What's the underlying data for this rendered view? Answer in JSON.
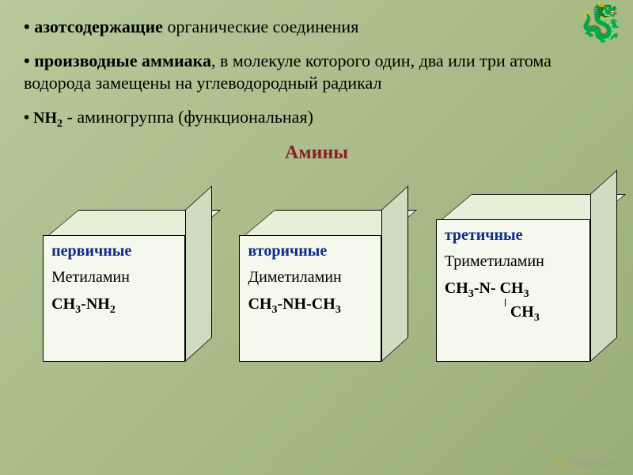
{
  "bullets": {
    "b1_bold": "азотсодержащие",
    "b1_rest": " органические соединения",
    "b2_bold": "производные аммиака",
    "b2_rest": ", в молекуле которого один, два или три атома водорода замещены на углеводородный радикал",
    "b3_prefix": "NH",
    "b3_sub": "2",
    "b3_rest": " - аминогруппа (функциональная)"
  },
  "section_title": "Амины",
  "cubes": {
    "primary": {
      "label": "первичные",
      "name": "Метиламин",
      "formula_html": "CH<span class='sub'>3</span>-NH<span class='sub'>2</span>"
    },
    "secondary": {
      "label": "вторичные",
      "name": "Диметиламин",
      "formula_html": "CH<span class='sub'>3</span>-NH-CH<span class='sub'>3</span>"
    },
    "tertiary": {
      "label": "третичные",
      "name": "Триметиламин",
      "formula_html": "CH<span class='sub'>3</span>-N- CH<span class='sub'>3</span>",
      "extra_html": "CH<span class='sub'>3</span>"
    }
  },
  "dragon_emoji": "🐉",
  "watermark": {
    "prefix": "My",
    "rest": "Shared.ru"
  },
  "colors": {
    "bg_grad_start": "#b8c99a",
    "bg_grad_end": "#9aae7a",
    "title_color": "#8b2020",
    "label_color": "#0a2d8a",
    "cube_front": "#f5f8ec",
    "cube_top": "#e8efd8",
    "cube_side": "#d0dcc0"
  }
}
